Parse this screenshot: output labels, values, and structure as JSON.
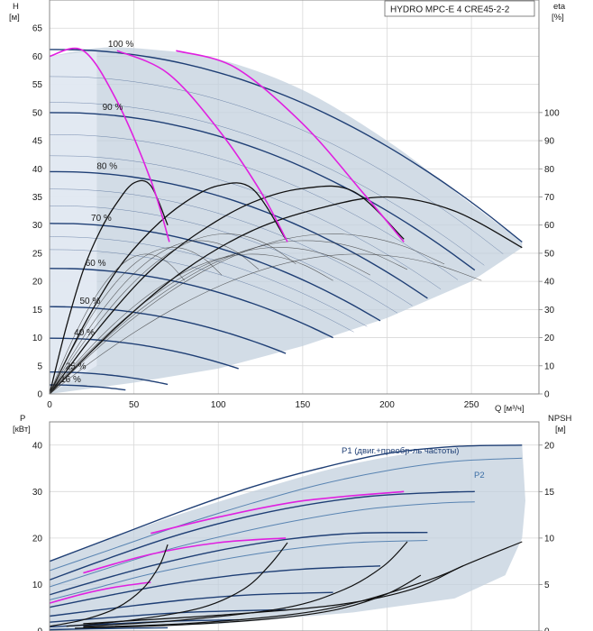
{
  "colors": {
    "envelope": "#c3d0de",
    "envelope_dark": "#aebdd0",
    "navy": "#1f3f75",
    "blue": "#3b6ea5",
    "magenta": "#e020e0",
    "black": "#111111",
    "grid": "#d8d8d8",
    "frame": "#888888"
  },
  "chart_data": [
    {
      "type": "line",
      "title": "HYDRO MPC-E 4 CRE45-2-2",
      "xlabel": "Q [м³/ч]",
      "ylabel": "H\n[м]",
      "y2label": "eta\n[%]",
      "xlim": [
        0,
        290
      ],
      "ylim": [
        0,
        70
      ],
      "y2lim": [
        0,
        140
      ],
      "xticks": [
        0,
        50,
        100,
        150,
        200,
        250
      ],
      "yticks": [
        0,
        5,
        10,
        15,
        20,
        25,
        30,
        35,
        40,
        45,
        50,
        55,
        60,
        65
      ],
      "y2ticks": [
        0,
        10,
        20,
        30,
        40,
        50,
        60,
        70,
        80,
        90,
        100
      ],
      "grid": true,
      "speed_curves": [
        {
          "name": "100 %",
          "h0": 61.2,
          "qmax": 280,
          "hend": 27
        },
        {
          "name": "90 %",
          "h0": 50,
          "qmax": 252,
          "hend": 22
        },
        {
          "name": "80 %",
          "h0": 39.5,
          "qmax": 224,
          "hend": 17
        },
        {
          "name": "70 %",
          "h0": 30.3,
          "qmax": 196,
          "hend": 13
        },
        {
          "name": "60 %",
          "h0": 22.3,
          "qmax": 168,
          "hend": 10
        },
        {
          "name": "50 %",
          "h0": 15.5,
          "qmax": 140,
          "hend": 7.2
        },
        {
          "name": "40 %",
          "h0": 9.9,
          "qmax": 112,
          "hend": 4.5
        },
        {
          "name": "25 %",
          "h0": 3.9,
          "qmax": 70,
          "hend": 1.7
        },
        {
          "name": "16 %",
          "h0": 1.6,
          "qmax": 45,
          "hend": 0.7
        }
      ],
      "system_curves_magenta": [
        [
          [
            0,
            60
          ],
          [
            20,
            61
          ],
          [
            40,
            52
          ],
          [
            60,
            38
          ],
          [
            71,
            27
          ]
        ],
        [
          [
            40,
            61
          ],
          [
            70,
            57
          ],
          [
            100,
            47
          ],
          [
            125,
            36
          ],
          [
            141,
            27
          ]
        ],
        [
          [
            75,
            61
          ],
          [
            110,
            58
          ],
          [
            150,
            48
          ],
          [
            185,
            36
          ],
          [
            210,
            27
          ]
        ]
      ],
      "efficiency_curves": [
        {
          "q": [
            0,
            10,
            20,
            30,
            40,
            50,
            60,
            70
          ],
          "eta": [
            0,
            24,
            44,
            58,
            68,
            75,
            74,
            60
          ]
        },
        {
          "q": [
            0,
            20,
            40,
            60,
            80,
            100,
            120,
            140
          ],
          "eta": [
            0,
            24,
            44,
            58,
            68,
            74,
            73,
            55
          ]
        },
        {
          "q": [
            0,
            30,
            60,
            90,
            120,
            150,
            180,
            210
          ],
          "eta": [
            0,
            24,
            44,
            58,
            68,
            73,
            72,
            55
          ]
        },
        {
          "q": [
            0,
            40,
            80,
            120,
            160,
            200,
            240,
            280
          ],
          "eta": [
            0,
            24,
            44,
            58,
            66,
            70,
            65,
            52
          ]
        }
      ],
      "envelope_top": [
        [
          0,
          60
        ],
        [
          30,
          61.5
        ],
        [
          60,
          61.2
        ],
        [
          100,
          59.5
        ],
        [
          150,
          54
        ],
        [
          200,
          45
        ],
        [
          240,
          36
        ],
        [
          280,
          27
        ]
      ],
      "envelope_bottom": [
        [
          0,
          0
        ],
        [
          50,
          2
        ],
        [
          100,
          4.5
        ],
        [
          150,
          8.5
        ],
        [
          200,
          13.5
        ],
        [
          250,
          20
        ],
        [
          280,
          26
        ]
      ]
    },
    {
      "type": "line",
      "xlabel": "",
      "ylabel": "P\n[кВт]",
      "y2label": "NPSH\n[м]",
      "xlim": [
        0,
        290
      ],
      "ylim": [
        0,
        45
      ],
      "y2lim": [
        0,
        22.5
      ],
      "yticks": [
        0,
        10,
        20,
        30,
        40
      ],
      "y2ticks": [
        0,
        5,
        10,
        15,
        20
      ],
      "grid": true,
      "series_labels": [
        "P1 (двиг.+преобр-ль частоты)",
        "P2"
      ],
      "p1_curves": [
        [
          [
            0,
            15
          ],
          [
            40,
            20.5
          ],
          [
            80,
            26
          ],
          [
            120,
            31
          ],
          [
            160,
            35
          ],
          [
            200,
            38.2
          ],
          [
            240,
            39.7
          ],
          [
            280,
            40
          ]
        ],
        [
          [
            0,
            11
          ],
          [
            30,
            15
          ],
          [
            70,
            20
          ],
          [
            110,
            24
          ],
          [
            150,
            27
          ],
          [
            190,
            29
          ],
          [
            230,
            29.8
          ],
          [
            252,
            30
          ]
        ],
        [
          [
            0,
            7.8
          ],
          [
            25,
            10.5
          ],
          [
            60,
            14
          ],
          [
            100,
            17.3
          ],
          [
            140,
            19.7
          ],
          [
            180,
            21
          ],
          [
            224,
            21.2
          ]
        ],
        [
          [
            0,
            5.1
          ],
          [
            30,
            7.3
          ],
          [
            70,
            10
          ],
          [
            110,
            12
          ],
          [
            150,
            13.3
          ],
          [
            196,
            14
          ]
        ],
        [
          [
            0,
            3.2
          ],
          [
            40,
            5
          ],
          [
            80,
            6.7
          ],
          [
            120,
            7.8
          ],
          [
            168,
            8.3
          ]
        ],
        [
          [
            0,
            1.9
          ],
          [
            40,
            3
          ],
          [
            80,
            4
          ],
          [
            140,
            4.6
          ]
        ],
        [
          [
            0,
            0.9
          ],
          [
            40,
            1.6
          ],
          [
            80,
            2.2
          ],
          [
            112,
            2.4
          ]
        ],
        [
          [
            0,
            0.3
          ],
          [
            30,
            0.5
          ],
          [
            70,
            0.7
          ]
        ]
      ],
      "p2_curves": [
        [
          [
            0,
            13
          ],
          [
            40,
            18
          ],
          [
            80,
            23
          ],
          [
            120,
            27.5
          ],
          [
            160,
            31.5
          ],
          [
            200,
            34.5
          ],
          [
            240,
            36.5
          ],
          [
            280,
            37.2
          ]
        ],
        [
          [
            0,
            9.5
          ],
          [
            30,
            13
          ],
          [
            70,
            17.5
          ],
          [
            110,
            21
          ],
          [
            150,
            24
          ],
          [
            190,
            26.3
          ],
          [
            230,
            27.5
          ],
          [
            252,
            27.8
          ]
        ],
        [
          [
            0,
            6.7
          ],
          [
            25,
            9
          ],
          [
            60,
            12.3
          ],
          [
            100,
            15.2
          ],
          [
            140,
            17.5
          ],
          [
            180,
            19
          ],
          [
            224,
            19.5
          ]
        ]
      ],
      "p_magenta": [
        [
          [
            0,
            6
          ],
          [
            20,
            8
          ],
          [
            40,
            9.5
          ],
          [
            60,
            10.5
          ]
        ],
        [
          [
            20,
            12.5
          ],
          [
            60,
            16.5
          ],
          [
            100,
            19
          ],
          [
            140,
            20
          ]
        ],
        [
          [
            60,
            21
          ],
          [
            100,
            24.5
          ],
          [
            150,
            28
          ],
          [
            210,
            30
          ]
        ]
      ],
      "npsh_curves": [
        [
          [
            0,
            0.5
          ],
          [
            20,
            1.2
          ],
          [
            40,
            2.5
          ],
          [
            55,
            4.5
          ],
          [
            65,
            7
          ],
          [
            70,
            9.3
          ]
        ],
        [
          [
            10,
            0.5
          ],
          [
            50,
            1.2
          ],
          [
            90,
            2.5
          ],
          [
            115,
            4.5
          ],
          [
            130,
            7
          ],
          [
            141,
            9.5
          ]
        ],
        [
          [
            20,
            0.5
          ],
          [
            80,
            1.2
          ],
          [
            140,
            2.5
          ],
          [
            175,
            4.5
          ],
          [
            198,
            7
          ],
          [
            212,
            9.6
          ]
        ],
        [
          [
            20,
            0.8
          ],
          [
            100,
            1.7
          ],
          [
            170,
            2.8
          ],
          [
            215,
            4.5
          ],
          [
            245,
            7
          ],
          [
            280,
            9.6
          ]
        ],
        [
          [
            20,
            0.4
          ],
          [
            80,
            0.8
          ],
          [
            140,
            1.7
          ],
          [
            180,
            3
          ],
          [
            225,
            5.5
          ],
          [
            245,
            7
          ]
        ],
        [
          [
            15,
            0.3
          ],
          [
            70,
            0.6
          ],
          [
            130,
            1.3
          ],
          [
            170,
            2.3
          ],
          [
            200,
            4
          ],
          [
            220,
            6
          ]
        ]
      ],
      "envelope_top": [
        [
          0,
          15
        ],
        [
          60,
          23
        ],
        [
          120,
          30
        ],
        [
          180,
          36
        ],
        [
          240,
          39.5
        ],
        [
          280,
          40
        ]
      ],
      "envelope_bottom": [
        [
          0,
          0
        ],
        [
          100,
          1.5
        ],
        [
          180,
          4
        ],
        [
          240,
          7
        ],
        [
          270,
          12
        ],
        [
          280,
          20
        ],
        [
          282,
          28
        ]
      ]
    }
  ]
}
